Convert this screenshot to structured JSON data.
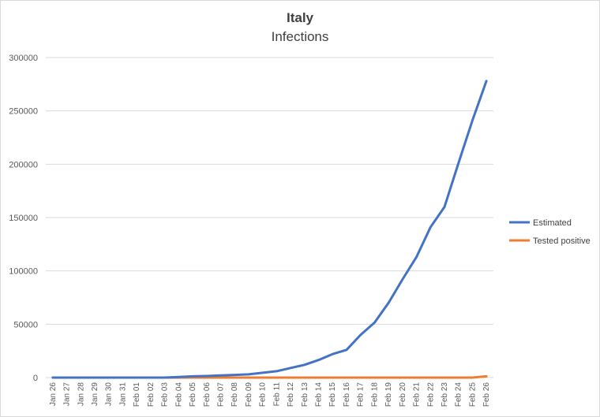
{
  "chart_data": {
    "type": "line",
    "title": "Italy",
    "subtitle": "Infections",
    "categories": [
      "Jan 26",
      "Jan 27",
      "Jan 28",
      "Jan 29",
      "Jan 30",
      "Jan 31",
      "Feb 01",
      "Feb 02",
      "Feb 03",
      "Feb 04",
      "Feb 05",
      "Feb 06",
      "Feb 07",
      "Feb 08",
      "Feb 09",
      "Feb 10",
      "Feb 11",
      "Feb 12",
      "Feb 13",
      "Feb 14",
      "Feb 15",
      "Feb 16",
      "Feb 17",
      "Feb 18",
      "Feb 19",
      "Feb 20",
      "Feb 21",
      "Feb 22",
      "Feb 23",
      "Feb 24",
      "Feb 25",
      "Feb 26"
    ],
    "ylim": [
      0,
      300000
    ],
    "yticks": [
      0,
      50000,
      100000,
      150000,
      200000,
      250000,
      300000
    ],
    "ytick_labels": [
      "0",
      "50000",
      "100000",
      "150000",
      "200000",
      "250000",
      "300000"
    ],
    "grid": true,
    "legend_position": "right",
    "series": [
      {
        "name": "Estimated",
        "color": "#4472c4",
        "values": [
          0,
          0,
          0,
          0,
          0,
          0,
          0,
          0,
          0,
          500,
          1200,
          1500,
          2000,
          2500,
          3000,
          4500,
          6000,
          9000,
          12000,
          16500,
          22000,
          26000,
          40000,
          51500,
          70000,
          92000,
          113000,
          141000,
          160000,
          201000,
          241000,
          278000
        ]
      },
      {
        "name": "Tested positive",
        "color": "#ed7d31",
        "values": [
          0,
          0,
          0,
          0,
          0,
          0,
          0,
          0,
          0,
          0,
          0,
          0,
          0,
          0,
          0,
          0,
          0,
          0,
          0,
          0,
          0,
          0,
          0,
          0,
          0,
          0,
          0,
          0,
          0,
          0,
          0,
          1200
        ]
      }
    ]
  }
}
